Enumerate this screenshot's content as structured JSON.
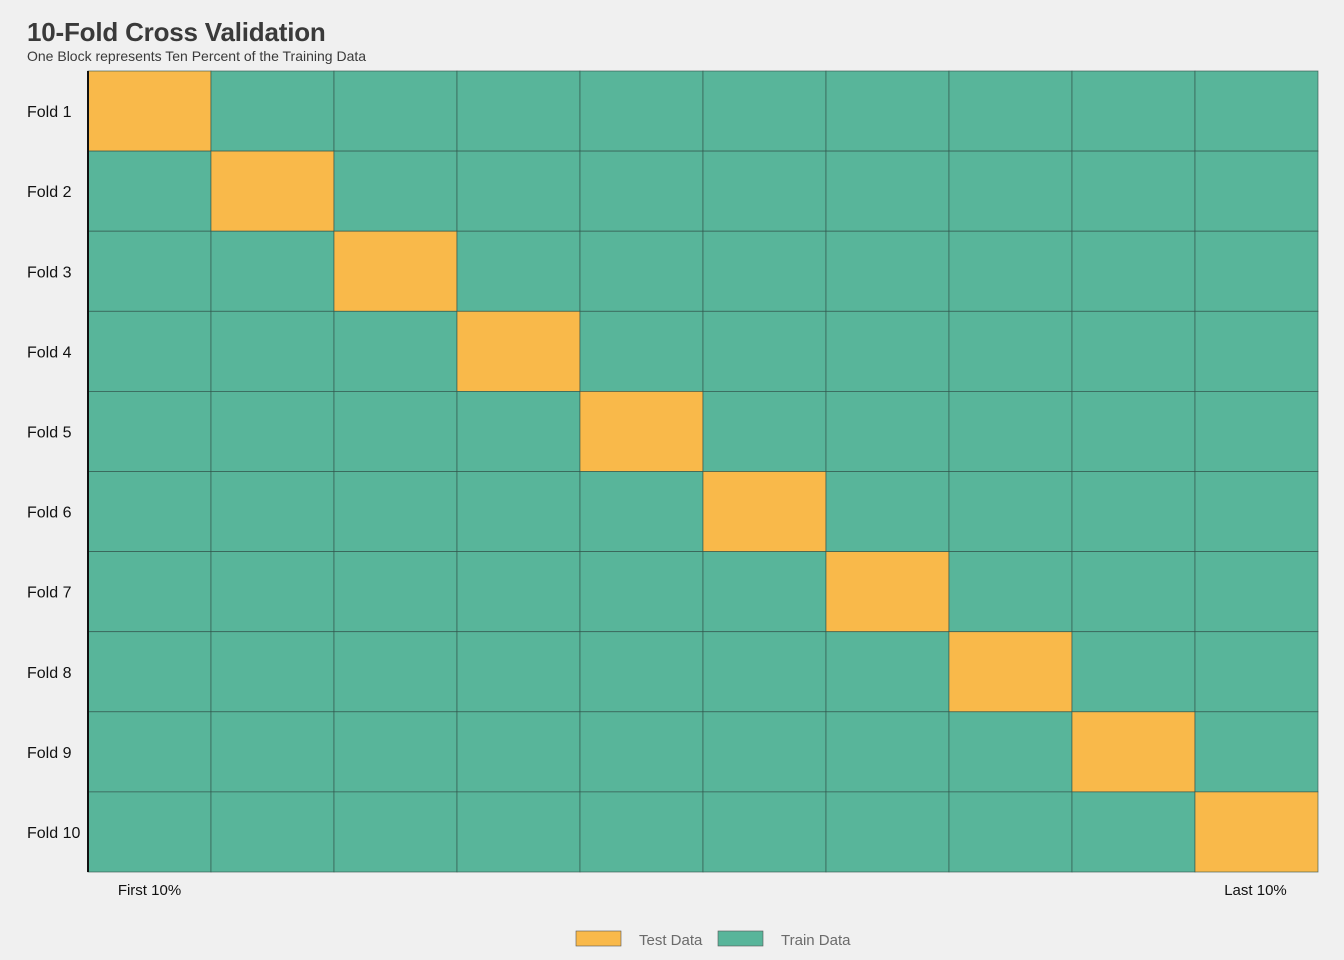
{
  "chart_data": {
    "type": "heatmap",
    "title": "10-Fold Cross Validation",
    "subtitle": "One Block represents Ten Percent of the Training Data",
    "rows": [
      "Fold 1",
      "Fold 2",
      "Fold 3",
      "Fold 4",
      "Fold 5",
      "Fold 6",
      "Fold 7",
      "Fold 8",
      "Fold 9",
      "Fold 10"
    ],
    "n_blocks": 10,
    "test_block_index": [
      0,
      1,
      2,
      3,
      4,
      5,
      6,
      7,
      8,
      9
    ],
    "x_tick_labels": {
      "first": "First 10%",
      "last": "Last 10%"
    },
    "legend": [
      {
        "name": "Test Data",
        "color": "#f9b94a"
      },
      {
        "name": "Train Data",
        "color": "#58b59a"
      }
    ],
    "colors": {
      "test": "#f9b94a",
      "train": "#58b59a",
      "grid_line": "#2f4f47",
      "background": "#f0f0f0"
    },
    "legend_position": "bottom",
    "grid": true
  }
}
